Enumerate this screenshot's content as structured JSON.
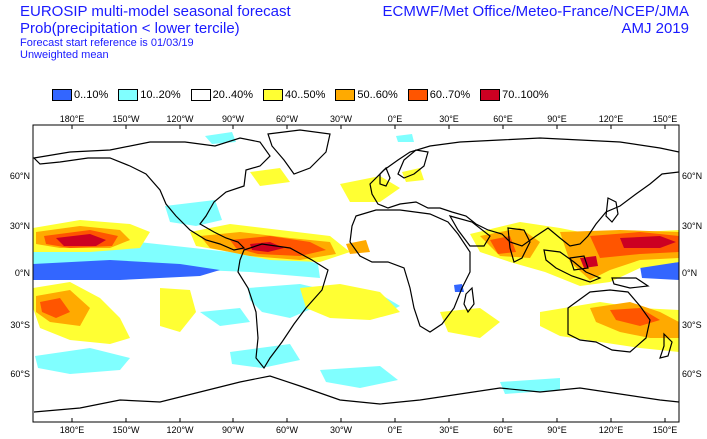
{
  "header": {
    "title": "EUROSIP multi-model seasonal forecast",
    "subtitle": "Prob(precipitation < lower tercile)",
    "forecast_ref": "Forecast start reference is 01/03/19",
    "weighting": "Unweighted mean",
    "centres": "ECMWF/Met Office/Meteo-France/NCEP/JMA",
    "season": "AMJ 2019"
  },
  "legend": [
    {
      "label": "0..10%",
      "color": "#3366ff"
    },
    {
      "label": "10..20%",
      "color": "#80ffff"
    },
    {
      "label": "20..40%",
      "color": "#ffffff"
    },
    {
      "label": "40..50%",
      "color": "#ffff33"
    },
    {
      "label": "50..60%",
      "color": "#ffaa00"
    },
    {
      "label": "60..70%",
      "color": "#ff5500"
    },
    {
      "label": "70..100%",
      "color": "#cc0022"
    }
  ],
  "map": {
    "lon_labels": [
      "180°E",
      "150°W",
      "120°W",
      "90°W",
      "60°W",
      "30°W",
      "0°E",
      "30°E",
      "60°E",
      "90°E",
      "120°E",
      "150°E"
    ],
    "lat_labels": [
      "60°N",
      "30°N",
      "0°N",
      "30°S",
      "60°S"
    ]
  }
}
